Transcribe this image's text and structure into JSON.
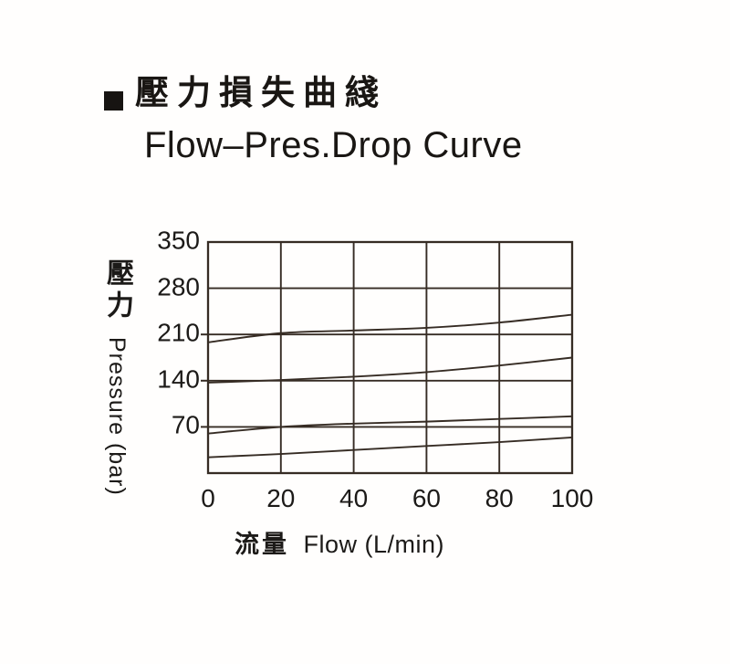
{
  "page": {
    "background": "#ffffff",
    "text_color": "#1c1a18"
  },
  "header": {
    "bullet_icon": "black-square",
    "title_cjk": "壓力損失曲綫",
    "subtitle": "Flow–Pres.Drop Curve"
  },
  "chart_data": {
    "type": "line",
    "title_cjk": "壓力損失曲綫",
    "title_en": "Flow–Pres.Drop Curve",
    "xlabel_cjk": "流量",
    "xlabel_latin": "Flow (L/min)",
    "ylabel_cjk": "壓力",
    "ylabel_latin": "Pressure (bar)",
    "xlim": [
      0,
      100
    ],
    "ylim": [
      0,
      350
    ],
    "x_ticks": [
      0,
      20,
      40,
      60,
      80,
      100
    ],
    "y_ticks": [
      350,
      280,
      210,
      140,
      70
    ],
    "y_tick_marks": [
      210,
      140,
      70
    ],
    "grid": true,
    "legend": "none",
    "line_color": "#362c24",
    "x": [
      0,
      20,
      40,
      60,
      80,
      100
    ],
    "series": [
      {
        "name": "curve_1",
        "values": [
          198,
          212,
          216,
          220,
          228,
          240
        ]
      },
      {
        "name": "curve_2",
        "values": [
          137,
          141,
          146,
          153,
          163,
          175
        ]
      },
      {
        "name": "curve_3",
        "values": [
          60,
          70,
          75,
          78,
          82,
          86
        ]
      },
      {
        "name": "curve_4",
        "values": [
          24,
          29,
          35,
          41,
          47,
          54
        ]
      }
    ]
  }
}
